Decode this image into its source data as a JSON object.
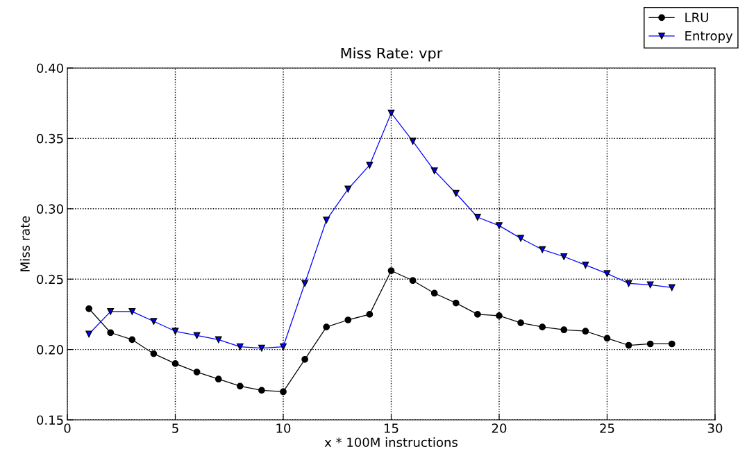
{
  "chart_data": {
    "type": "line",
    "title": "Miss Rate: vpr",
    "xlabel": "x * 100M instructions",
    "ylabel": "Miss rate",
    "x": [
      1,
      2,
      3,
      4,
      5,
      6,
      7,
      8,
      9,
      10,
      11,
      12,
      13,
      14,
      15,
      16,
      17,
      18,
      19,
      20,
      21,
      22,
      23,
      24,
      25,
      26,
      27,
      28
    ],
    "series": [
      {
        "name": "LRU",
        "color": "#000000",
        "marker": "circle",
        "values": [
          0.229,
          0.212,
          0.207,
          0.197,
          0.19,
          0.184,
          0.179,
          0.174,
          0.171,
          0.17,
          0.193,
          0.216,
          0.221,
          0.225,
          0.256,
          0.249,
          0.24,
          0.233,
          0.225,
          0.224,
          0.219,
          0.216,
          0.214,
          0.213,
          0.208,
          0.203,
          0.204,
          0.204
        ]
      },
      {
        "name": "Entropy",
        "color": "#0000ff",
        "marker": "triangle",
        "values": [
          0.211,
          0.227,
          0.227,
          0.22,
          0.213,
          0.21,
          0.207,
          0.202,
          0.201,
          0.202,
          0.247,
          0.292,
          0.314,
          0.331,
          0.368,
          0.348,
          0.327,
          0.311,
          0.294,
          0.288,
          0.279,
          0.271,
          0.266,
          0.26,
          0.254,
          0.247,
          0.246,
          0.244
        ]
      }
    ],
    "xlim": [
      0,
      30
    ],
    "xticks": [
      0,
      5,
      10,
      15,
      20,
      25,
      30
    ],
    "ylim": [
      0.15,
      0.4
    ],
    "yticks": [
      {
        "value": 0.15,
        "label": "0.15"
      },
      {
        "value": 0.2,
        "label": "0.20"
      },
      {
        "value": 0.25,
        "label": "0.25"
      },
      {
        "value": 0.3,
        "label": "0.30"
      },
      {
        "value": 0.35,
        "label": "0.35"
      },
      {
        "value": 0.4,
        "label": "0.40"
      }
    ],
    "grid": true,
    "legend": "top right",
    "line_style": "solid"
  }
}
